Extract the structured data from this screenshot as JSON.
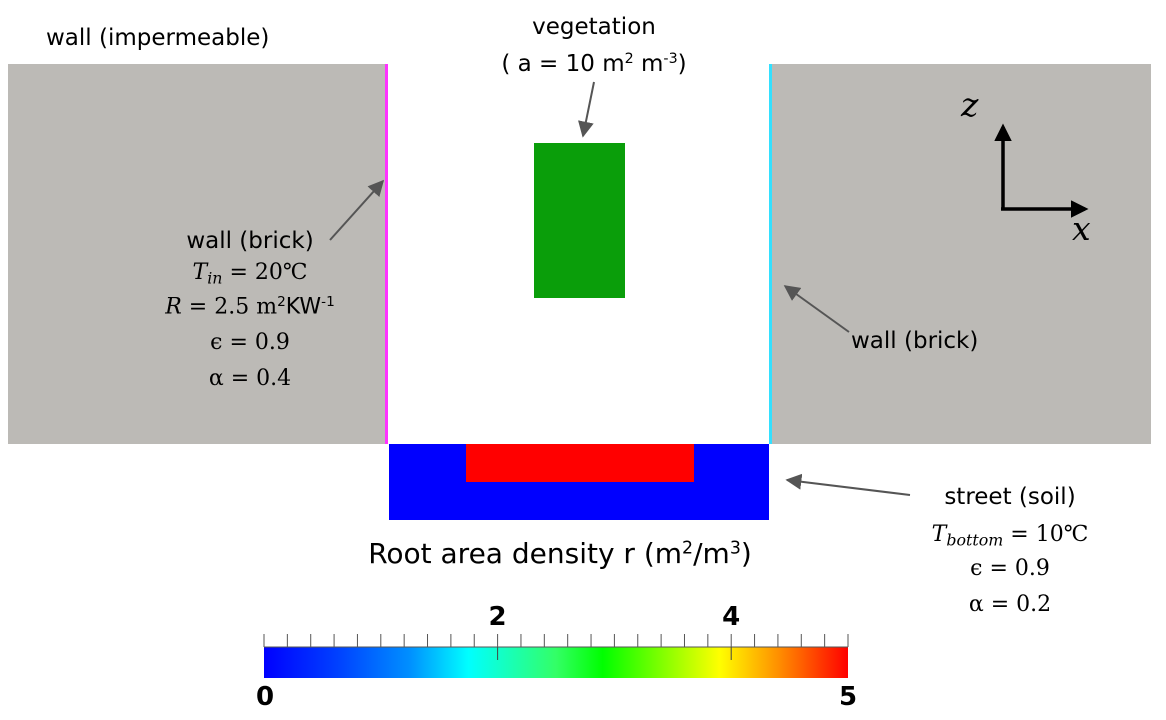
{
  "labels": {
    "wall_impermeable": "wall (impermeable)",
    "vegetation": {
      "title": "vegetation",
      "open": "( a = 10 m",
      "exp1": "2",
      "mid": " m",
      "exp2": "-3",
      "close": ")"
    },
    "wall_brick_left": {
      "title": "wall (brick)",
      "tin_sym": "T",
      "tin_sub": "in",
      "tin_val": " = 20℃",
      "r_sym": "R",
      "r_val": " = 2.5 m",
      "r_exp1": "2",
      "r_unit": "KW",
      "r_exp2": "-1",
      "eps": "ϵ = 0.9",
      "alpha": "α = 0.4"
    },
    "wall_brick_right": "wall (brick)",
    "street": {
      "title": "street (soil)",
      "tb_sym": "T",
      "tb_sub": "bottom",
      "tb_val": " = 10℃",
      "eps": "ϵ = 0.9",
      "alpha": "α = 0.2"
    },
    "axes": {
      "z": "z",
      "x": "x"
    }
  },
  "colorbar": {
    "title_pre": "Root area density r (m",
    "title_exp1": "2",
    "title_mid": "/m",
    "title_exp2": "3",
    "title_post": ")",
    "min": 0,
    "max": 5,
    "min_label": "0",
    "max_label": "5",
    "major_labels": [
      "2",
      "4"
    ],
    "major_values": [
      2,
      4
    ],
    "colormap": "jet"
  },
  "colors": {
    "wall_gray": "#bcbab6",
    "left_wall_line": "#ff33ff",
    "right_wall_line": "#33e0ff",
    "vegetation": "#0a9e0a",
    "soil_blue": "#0000ff",
    "root_red": "#ff0000",
    "arrow": "#555555"
  }
}
